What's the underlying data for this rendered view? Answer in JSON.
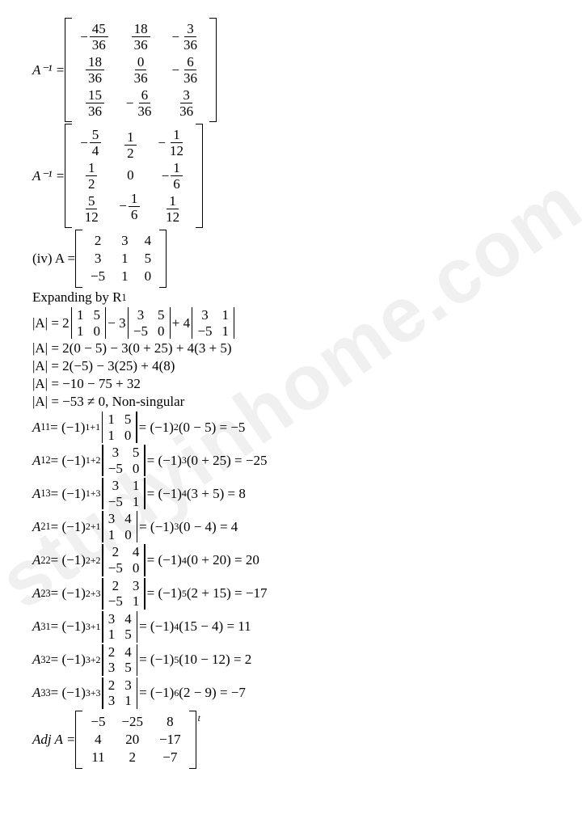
{
  "watermark": "studyinhome.com",
  "mat1": {
    "lhs": "A⁻¹ =",
    "neg": [
      "−",
      "",
      "−",
      "",
      "",
      "−",
      "",
      "−",
      ""
    ],
    "cells": [
      [
        "45",
        "36"
      ],
      [
        "18",
        "36"
      ],
      [
        "3",
        "36"
      ],
      [
        "18",
        "36"
      ],
      [
        "0",
        "36"
      ],
      [
        "6",
        "36"
      ],
      [
        "15",
        "36"
      ],
      [
        "6",
        "36"
      ],
      [
        "3",
        "36"
      ]
    ]
  },
  "mat2": {
    "lhs": "A⁻¹ =",
    "neg": [
      "−",
      "",
      "−",
      "",
      "",
      "−",
      "",
      "−",
      ""
    ],
    "cells": [
      [
        "5",
        "4"
      ],
      [
        "1",
        "2"
      ],
      [
        "1",
        "12"
      ],
      [
        "1",
        "2"
      ],
      [
        "0",
        ""
      ],
      [
        "1",
        "6"
      ],
      [
        "5",
        "12"
      ],
      [
        "1",
        "6"
      ],
      [
        "1",
        "12"
      ]
    ]
  },
  "iv": {
    "label": "(iv) A =",
    "rows": [
      [
        "2",
        "3",
        "4"
      ],
      [
        "3",
        "1",
        "5"
      ],
      [
        "−5",
        "1",
        "0"
      ]
    ]
  },
  "exp": "Expanding by R",
  "sub1": "1",
  "detA": {
    "l1_pre": "|A| = 2",
    "l1_m1": [
      [
        "1",
        "5"
      ],
      [
        "1",
        "0"
      ]
    ],
    "l1_mid1": "− 3",
    "l1_m2": [
      [
        "3",
        "5"
      ],
      [
        "−5",
        "0"
      ]
    ],
    "l1_mid2": "+ 4",
    "l1_m3": [
      [
        "3",
        "1"
      ],
      [
        "−5",
        "1"
      ]
    ],
    "l2": "|A| = 2(0 − 5) − 3(0 + 25) + 4(3 + 5)",
    "l3": "|A| = 2(−5) − 3(25) + 4(8)",
    "l4": "|A| = −10 − 75 + 32",
    "l5": "|A| = −53 ≠ 0, Non-singular"
  },
  "cof": [
    {
      "n": "A",
      "sub": "11",
      "pow": "1+1",
      "m": [
        [
          "1",
          "5"
        ],
        [
          "1",
          "0"
        ]
      ],
      "rp": "2",
      "rhs": "(0 − 5) = −5"
    },
    {
      "n": "A",
      "sub": "12",
      "pow": "1+2",
      "m": [
        [
          "3",
          "5"
        ],
        [
          "−5",
          "0"
        ]
      ],
      "rp": "3",
      "rhs": "(0 + 25) = −25"
    },
    {
      "n": "A",
      "sub": "13",
      "pow": "1+3",
      "m": [
        [
          "3",
          "1"
        ],
        [
          "−5",
          "1"
        ]
      ],
      "rp": "4",
      "rhs": "(3 + 5) = 8"
    },
    {
      "n": "A",
      "sub": "21",
      "pow": "2+1",
      "m": [
        [
          "3",
          "4"
        ],
        [
          "1",
          "0"
        ]
      ],
      "rp": "3",
      "rhs": "(0 − 4) = 4"
    },
    {
      "n": "A",
      "sub": "22",
      "pow": "2+2",
      "m": [
        [
          "2",
          "4"
        ],
        [
          "−5",
          "0"
        ]
      ],
      "rp": "4",
      "rhs": "(0 + 20) = 20"
    },
    {
      "n": "A",
      "sub": "23",
      "pow": "2+3",
      "m": [
        [
          "2",
          "3"
        ],
        [
          "−5",
          "1"
        ]
      ],
      "rp": "5",
      "rhs": "(2 + 15) = −17"
    },
    {
      "n": "A",
      "sub": "31",
      "pow": "3+1",
      "m": [
        [
          "3",
          "4"
        ],
        [
          "1",
          "5"
        ]
      ],
      "rp": "4",
      "rhs": "(15 − 4) = 11"
    },
    {
      "n": "A",
      "sub": "32",
      "pow": "3+2",
      "m": [
        [
          "2",
          "4"
        ],
        [
          "3",
          "5"
        ]
      ],
      "rp": "5",
      "rhs": "(10 − 12) = 2"
    },
    {
      "n": "A",
      "sub": "33",
      "pow": "3+3",
      "m": [
        [
          "2",
          "3"
        ],
        [
          "3",
          "1"
        ]
      ],
      "rp": "6",
      "rhs": "(2 − 9) = −7"
    }
  ],
  "adj": {
    "lhs": "Adj A =",
    "rows": [
      [
        "−5",
        "−25",
        "8"
      ],
      [
        "4",
        "20",
        "−17"
      ],
      [
        "11",
        "2",
        "−7"
      ]
    ],
    "sup": "t"
  }
}
